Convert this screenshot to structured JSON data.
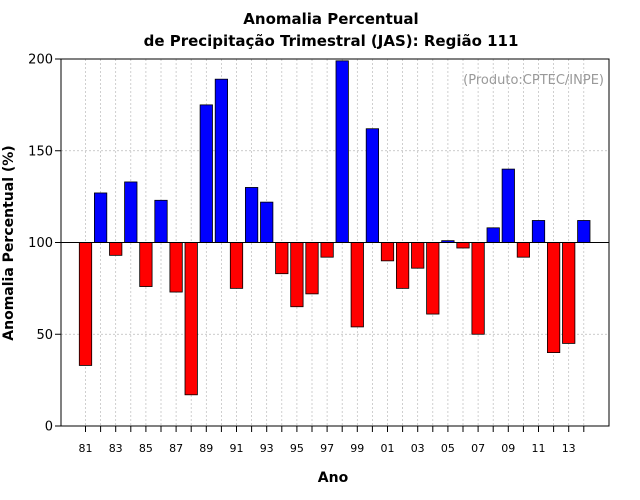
{
  "chart_data": {
    "type": "bar",
    "title": "Anomalia Percentual",
    "subtitle": "de Precipitação Trimestral (JAS): Região 111",
    "xlabel": "Ano",
    "ylabel": "Anomalia Percentual (%)",
    "annotation": "(Produto:CPTEC/INPE)",
    "ylim": [
      0,
      200
    ],
    "baseline": 100,
    "yticks": [
      "0",
      "50",
      "100",
      "150",
      "200"
    ],
    "xtick_labels": [
      "81",
      "83",
      "85",
      "87",
      "89",
      "91",
      "93",
      "95",
      "97",
      "99",
      "01",
      "03",
      "05",
      "07",
      "09",
      "11",
      "13"
    ],
    "categories": [
      "81",
      "82",
      "83",
      "84",
      "85",
      "86",
      "87",
      "88",
      "89",
      "90",
      "91",
      "92",
      "93",
      "94",
      "95",
      "96",
      "97",
      "98",
      "99",
      "00",
      "01",
      "02",
      "03",
      "04",
      "05",
      "06",
      "07",
      "08",
      "09",
      "10",
      "11",
      "12",
      "13",
      "14"
    ],
    "values": [
      33,
      127,
      93,
      133,
      76,
      123,
      73,
      17,
      175,
      189,
      75,
      130,
      122,
      83,
      65,
      72,
      92,
      199,
      54,
      162,
      90,
      75,
      86,
      61,
      101,
      97,
      50,
      108,
      140,
      92,
      112,
      40,
      45,
      112
    ],
    "colors": {
      "above": "#0000ff",
      "below": "#ff0000",
      "grid": "#bbbbbb"
    },
    "grid": true
  }
}
